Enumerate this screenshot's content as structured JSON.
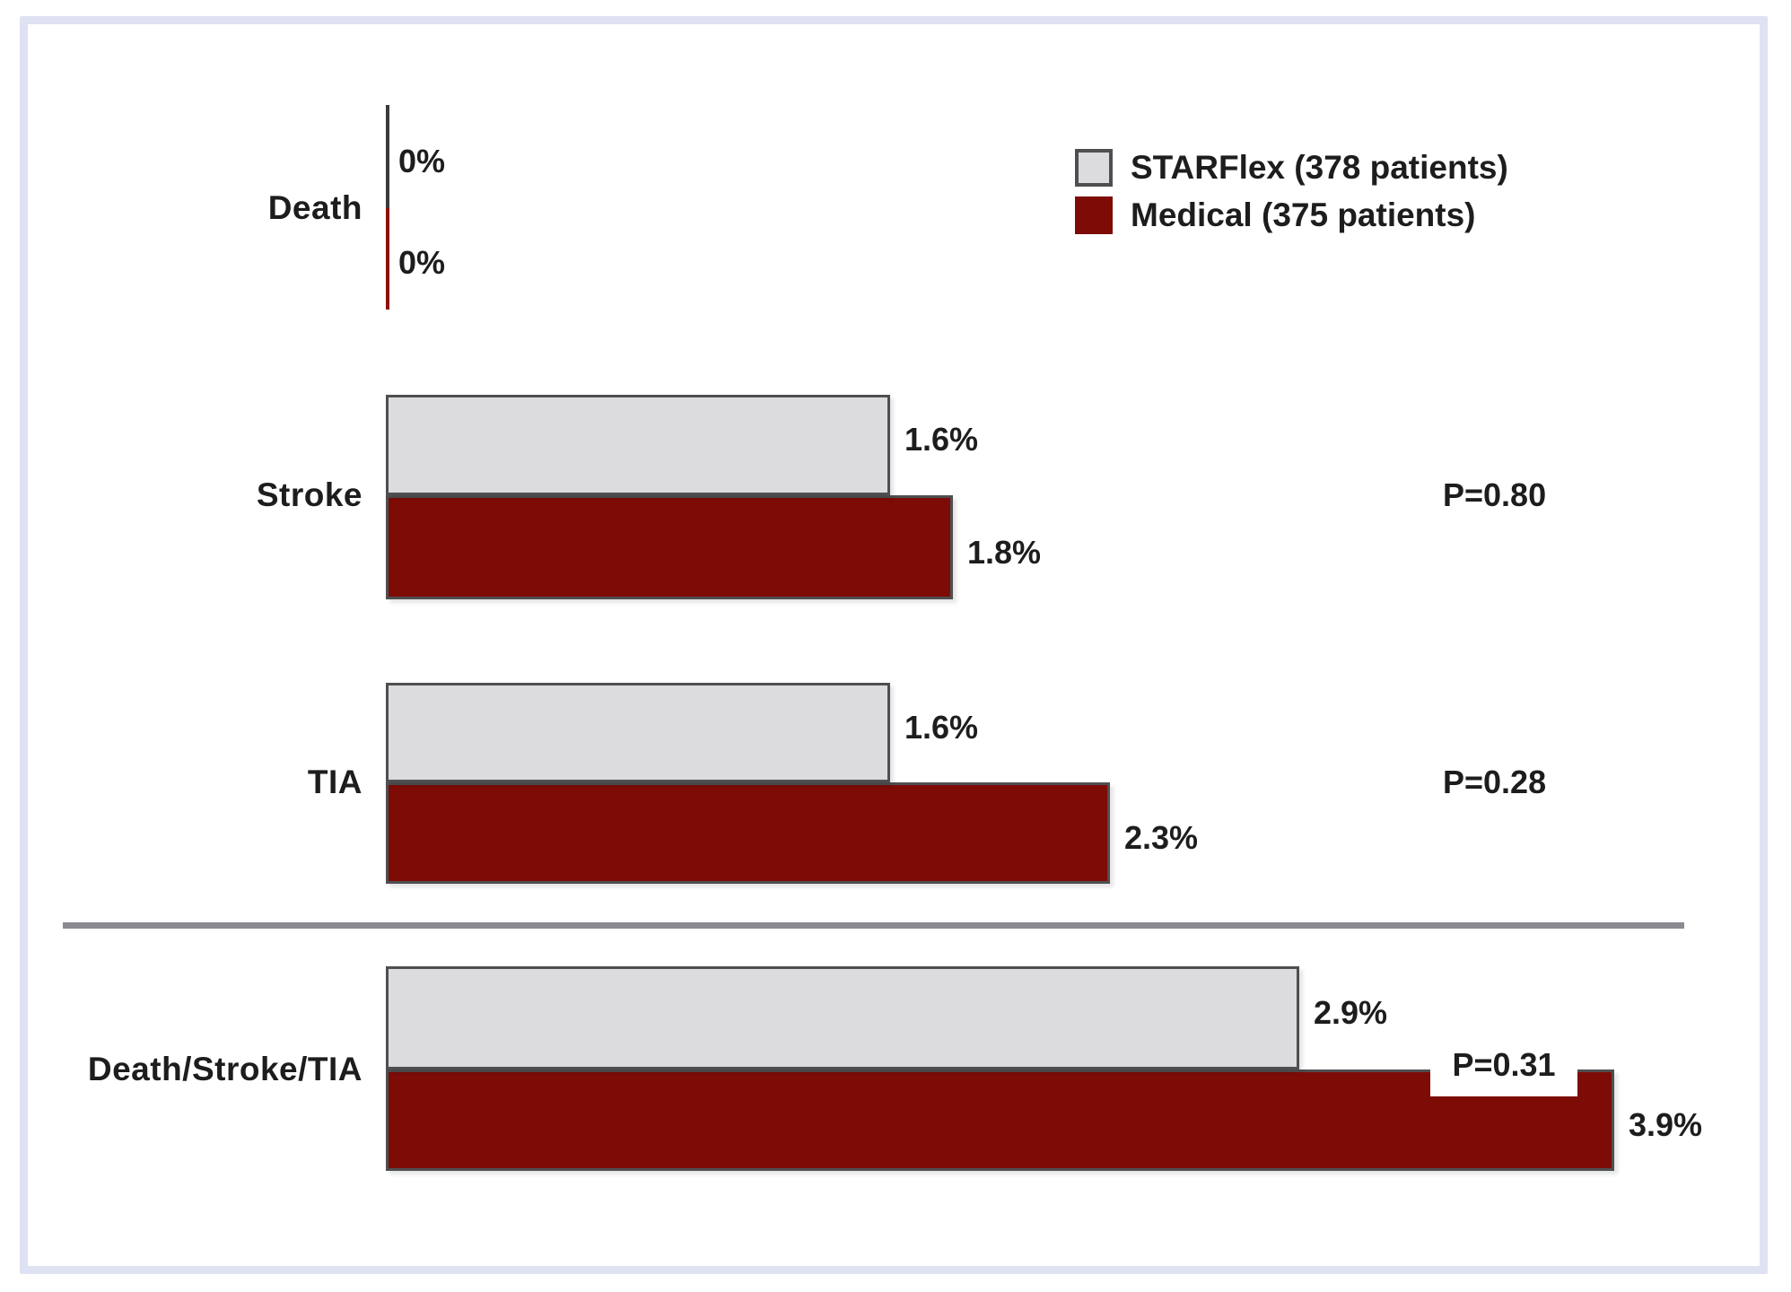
{
  "figure": {
    "description": "Horizontal grouped bar chart comparing event rates between STARFlex device and medical therapy"
  },
  "legend": {
    "items": [
      {
        "key": "starflex",
        "label": "STARFlex (378 patients)",
        "color": "#dcdcde"
      },
      {
        "key": "medical",
        "label": "Medical (375 patients)",
        "color": "#7d0b06"
      }
    ]
  },
  "colors": {
    "frame_border": "#dee2f3",
    "starflex_fill": "#dcdcde",
    "medical_fill": "#7d0b06",
    "bar_border": "#4f4f52",
    "zero_axis_dark": "#3a3a3c",
    "zero_axis_red": "#8c1108",
    "divider": "#8a8a90",
    "text": "#1d1d1f",
    "p_box_background": "#ffffff"
  },
  "chart_data": {
    "type": "bar",
    "orientation": "horizontal",
    "title": "",
    "xlabel": "",
    "ylabel": "",
    "categories": [
      "Death",
      "Stroke",
      "TIA",
      "Death/Stroke/TIA"
    ],
    "series": [
      {
        "key": "starflex",
        "name": "STARFlex (378 patients)",
        "color": "#dcdcde",
        "values": [
          0,
          1.6,
          1.6,
          2.9
        ],
        "value_labels": [
          "0%",
          "1.6%",
          "1.6%",
          "2.9%"
        ]
      },
      {
        "key": "medical",
        "name": "Medical (375 patients)",
        "color": "#7d0b06",
        "values": [
          0,
          1.8,
          2.3,
          3.9
        ],
        "value_labels": [
          "0%",
          "1.8%",
          "2.3%",
          "3.9%"
        ]
      }
    ],
    "p_values": [
      null,
      "P=0.80",
      "P=0.28",
      "P=0.31"
    ],
    "xlim": [
      0,
      4.16
    ],
    "grid": false,
    "legend_position": "top-right",
    "separator_before_category": "Death/Stroke/TIA"
  }
}
